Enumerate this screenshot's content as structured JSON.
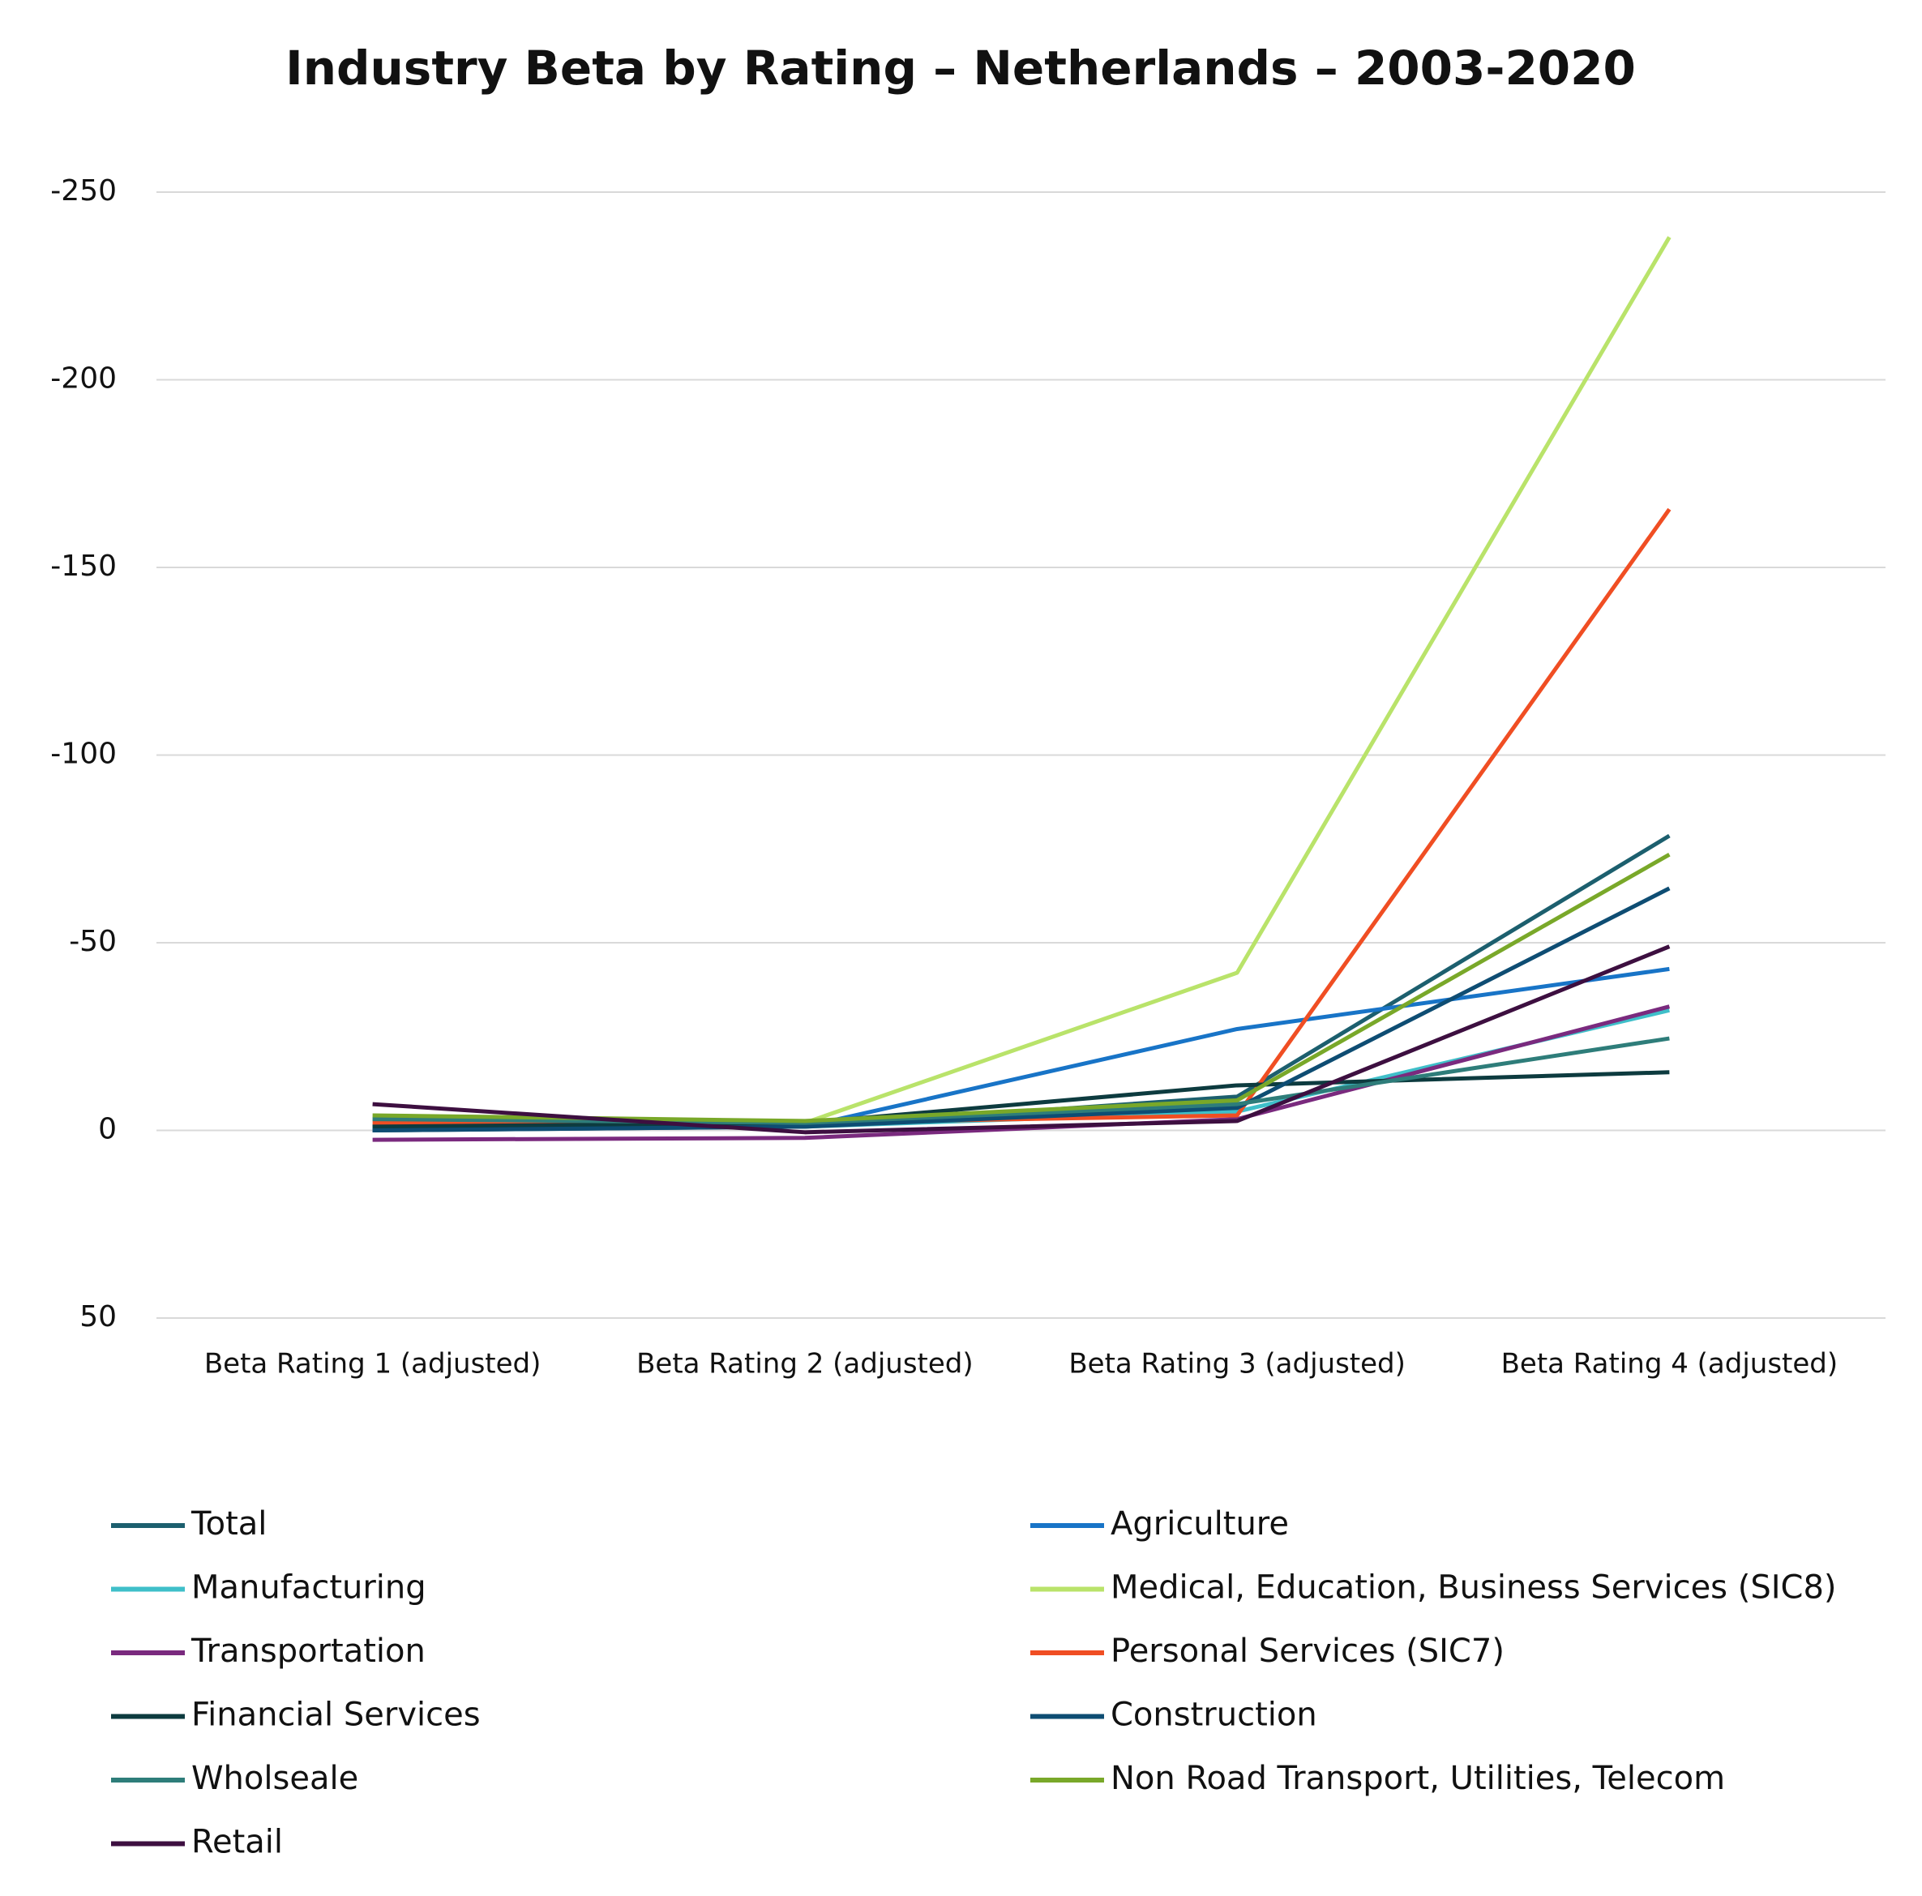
{
  "chart_data": {
    "type": "line",
    "title": "Industry Beta by Rating – Netherlands – 2003-2020",
    "categories": [
      "Beta Rating 1 (adjusted)",
      "Beta Rating 2 (adjusted)",
      "Beta Rating 3 (adjusted)",
      "Beta Rating 4 (adjusted)"
    ],
    "ylim": [
      50,
      -250
    ],
    "yticks": [
      -250,
      -200,
      -150,
      -100,
      -50,
      0,
      50
    ],
    "grid": true,
    "legend": "bottom",
    "series": [
      {
        "name": "Total",
        "color": "#1c5f6e",
        "values": [
          0,
          -1,
          -9,
          -78.5
        ]
      },
      {
        "name": "Agriculture",
        "color": "#1874c7",
        "values": [
          -1,
          -1,
          -27,
          -43
        ]
      },
      {
        "name": "Manufacturing",
        "color": "#3fbfc9",
        "values": [
          -1,
          -1,
          -5,
          -32
        ]
      },
      {
        "name": "Medical, Education, Business Services (SIC8)",
        "color": "#b9e36a",
        "values": [
          -3,
          -2,
          -42,
          -238
        ]
      },
      {
        "name": "Transportation",
        "color": "#7a2a7e",
        "values": [
          2.5,
          2,
          -3,
          -33
        ]
      },
      {
        "name": "Personal Services (SIC7)",
        "color": "#f04e23",
        "values": [
          -2,
          -2,
          -4,
          -165.5
        ]
      },
      {
        "name": "Financial Services",
        "color": "#0d3b3f",
        "values": [
          -1,
          -2,
          -12,
          -15.5
        ]
      },
      {
        "name": "Construction",
        "color": "#0e4d73",
        "values": [
          0,
          -1,
          -6,
          -64.5
        ]
      },
      {
        "name": "Wholseale",
        "color": "#2e7d7a",
        "values": [
          -3,
          -2,
          -7,
          -24.5
        ]
      },
      {
        "name": "Non Road Transport, Utilities, Telecom",
        "color": "#79a829",
        "values": [
          -4,
          -2.5,
          -8,
          -73.5
        ]
      },
      {
        "name": "Retail",
        "color": "#3d0f40",
        "values": [
          -7,
          0.5,
          -2.5,
          -49
        ]
      }
    ]
  }
}
